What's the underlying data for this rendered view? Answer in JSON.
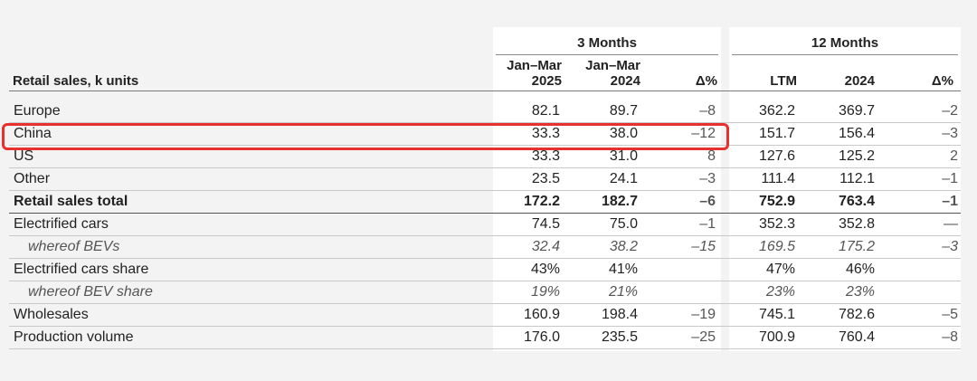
{
  "header": {
    "row_label": "Retail sales, k units",
    "group_3m": "3 Months",
    "group_12m": "12 Months",
    "cols": [
      {
        "line1": "Jan–Mar",
        "line2": "2025"
      },
      {
        "line1": "Jan–Mar",
        "line2": "2024"
      },
      {
        "line1": "",
        "line2": "Δ%"
      },
      {
        "line1": "",
        "line2": "LTM"
      },
      {
        "line1": "",
        "line2": "2024"
      },
      {
        "line1": "",
        "line2": "Δ%"
      }
    ]
  },
  "rows": [
    {
      "label": "Europe",
      "style": "normal",
      "values": [
        "82.1",
        "89.7",
        "–8",
        "362.2",
        "369.7",
        "–2"
      ]
    },
    {
      "label": "China",
      "style": "normal",
      "highlighted": true,
      "values": [
        "33.3",
        "38.0",
        "–12",
        "151.7",
        "156.4",
        "–3"
      ]
    },
    {
      "label": "US",
      "style": "normal",
      "values": [
        "33.3",
        "31.0",
        "8",
        "127.6",
        "125.2",
        "2"
      ]
    },
    {
      "label": "Other",
      "style": "normal",
      "values": [
        "23.5",
        "24.1",
        "–3",
        "111.4",
        "112.1",
        "–1"
      ]
    },
    {
      "label": "Retail sales total",
      "style": "bold",
      "values": [
        "172.2",
        "182.7",
        "–6",
        "752.9",
        "763.4",
        "–1"
      ]
    },
    {
      "label": "Electrified cars",
      "style": "normal",
      "values": [
        "74.5",
        "75.0",
        "–1",
        "352.3",
        "352.8",
        "—"
      ]
    },
    {
      "label": "whereof BEVs",
      "style": "italic",
      "values": [
        "32.4",
        "38.2",
        "–15",
        "169.5",
        "175.2",
        "–3"
      ]
    },
    {
      "label": "Electrified cars share",
      "style": "normal",
      "values": [
        "43%",
        "41%",
        "",
        "47%",
        "46%",
        ""
      ]
    },
    {
      "label": "whereof BEV share",
      "style": "italic",
      "values": [
        "19%",
        "21%",
        "",
        "23%",
        "23%",
        ""
      ]
    },
    {
      "label": "Wholesales",
      "style": "normal",
      "values": [
        "160.9",
        "198.4",
        "–19",
        "745.1",
        "782.6",
        "–5"
      ]
    },
    {
      "label": "Production volume",
      "style": "normal",
      "values": [
        "176.0",
        "235.5",
        "–25",
        "700.9",
        "760.4",
        "–8"
      ]
    }
  ],
  "colors": {
    "highlight": "#e8312f",
    "background": "#f3f3f3",
    "band": "#ffffff"
  }
}
